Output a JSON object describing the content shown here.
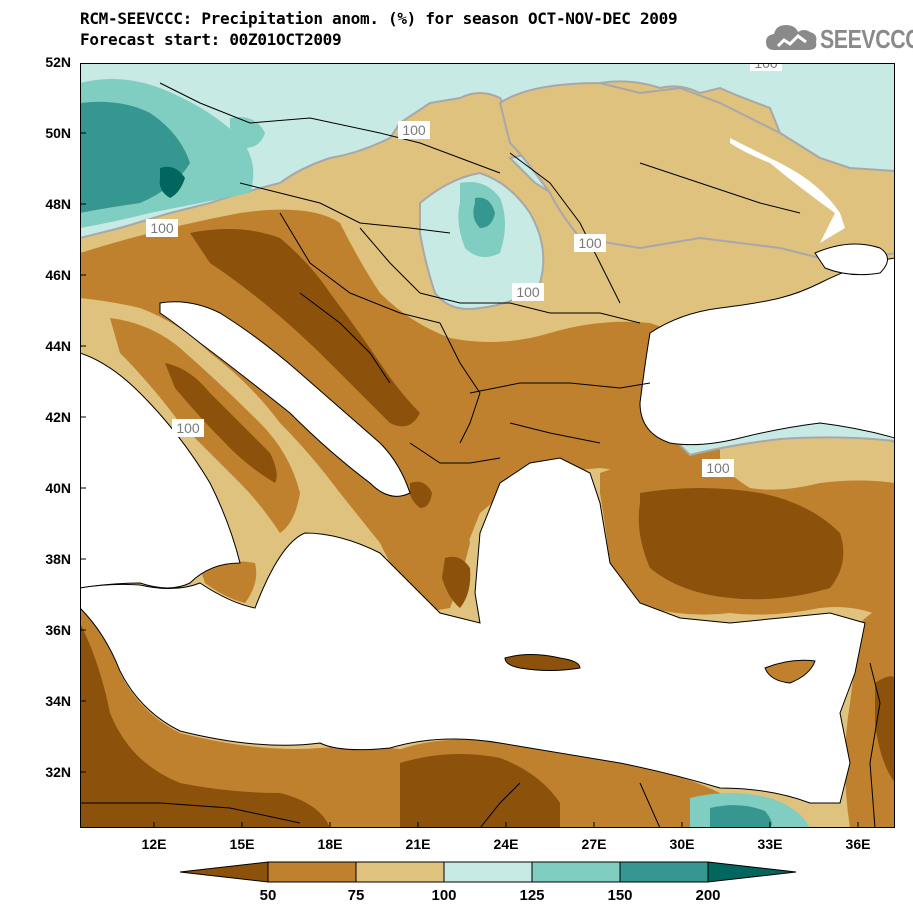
{
  "header": {
    "title_line1": "RCM-SEEVCCC: Precipitation anom. (%) for season OCT-NOV-DEC 2009",
    "title_line2": "Forecast start: 00Z01OCT2009"
  },
  "logo": {
    "text": "SEEVCCC",
    "icon": "cloud-icon"
  },
  "map": {
    "lat_labels": [
      "52N",
      "50N",
      "48N",
      "46N",
      "44N",
      "42N",
      "40N",
      "38N",
      "36N",
      "34N",
      "32N"
    ],
    "lon_labels": [
      "12E",
      "15E",
      "18E",
      "21E",
      "24E",
      "27E",
      "30E",
      "33E",
      "36E"
    ],
    "contour_labels": [
      "100",
      "100",
      "100",
      "100",
      "100",
      "100",
      "100"
    ]
  },
  "colorbar": {
    "labels": [
      "50",
      "75",
      "100",
      "125",
      "150",
      "200"
    ],
    "colors": [
      "#8c510a",
      "#bf812d",
      "#dfc27d",
      "#c7eae5",
      "#80cdc1",
      "#35978f",
      "#01665e"
    ]
  }
}
